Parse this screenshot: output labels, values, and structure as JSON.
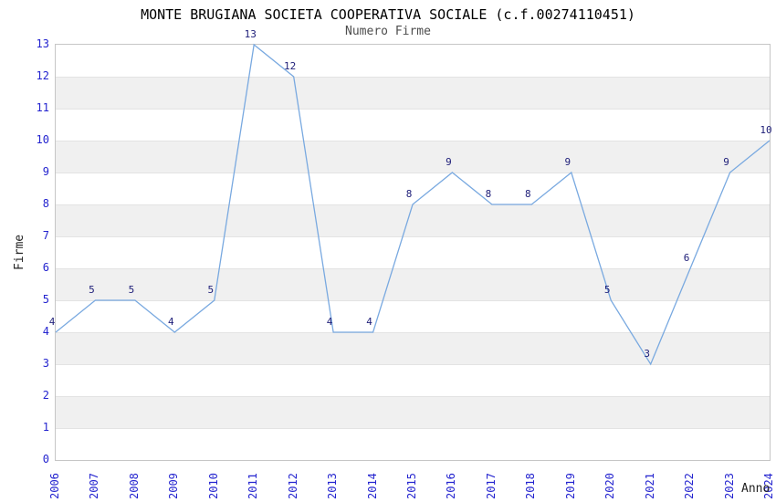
{
  "chart": {
    "title": "MONTE BRUGIANA SOCIETA COOPERATIVA SOCIALE (c.f.00274110451)",
    "subtitle": "Numero Firme",
    "ylabel": "Firme",
    "xlabel": "Anno"
  },
  "chart_data": {
    "type": "line",
    "title": "MONTE BRUGIANA SOCIETA COOPERATIVA SOCIALE (c.f.00274110451)",
    "subtitle": "Numero Firme",
    "xlabel": "Anno",
    "ylabel": "Firme",
    "categories": [
      "2006",
      "2007",
      "2008",
      "2009",
      "2010",
      "2011",
      "2012",
      "2013",
      "2014",
      "2015",
      "2016",
      "2017",
      "2018",
      "2019",
      "2020",
      "2021",
      "2022",
      "2023",
      "2024"
    ],
    "values": [
      4,
      5,
      5,
      4,
      5,
      13,
      12,
      4,
      4,
      8,
      9,
      8,
      8,
      9,
      5,
      3,
      6,
      9,
      10
    ],
    "ylim": [
      0,
      13
    ],
    "yticks": [
      0,
      1,
      2,
      3,
      4,
      5,
      6,
      7,
      8,
      9,
      10,
      11,
      12,
      13
    ],
    "grid": "alternating-horizontal-bands",
    "legend": "none",
    "point_labels_visible": true,
    "colors": {
      "line": "#79a9e0",
      "tick_label": "#2424cf",
      "value_label": "#20207a",
      "band_gray": "#f0f0f0",
      "gridline": "#e3e3e3",
      "plot_border": "#c6c6c6",
      "title": "#000000",
      "subtitle": "#4d4d4d",
      "axis_title": "#222222"
    }
  }
}
